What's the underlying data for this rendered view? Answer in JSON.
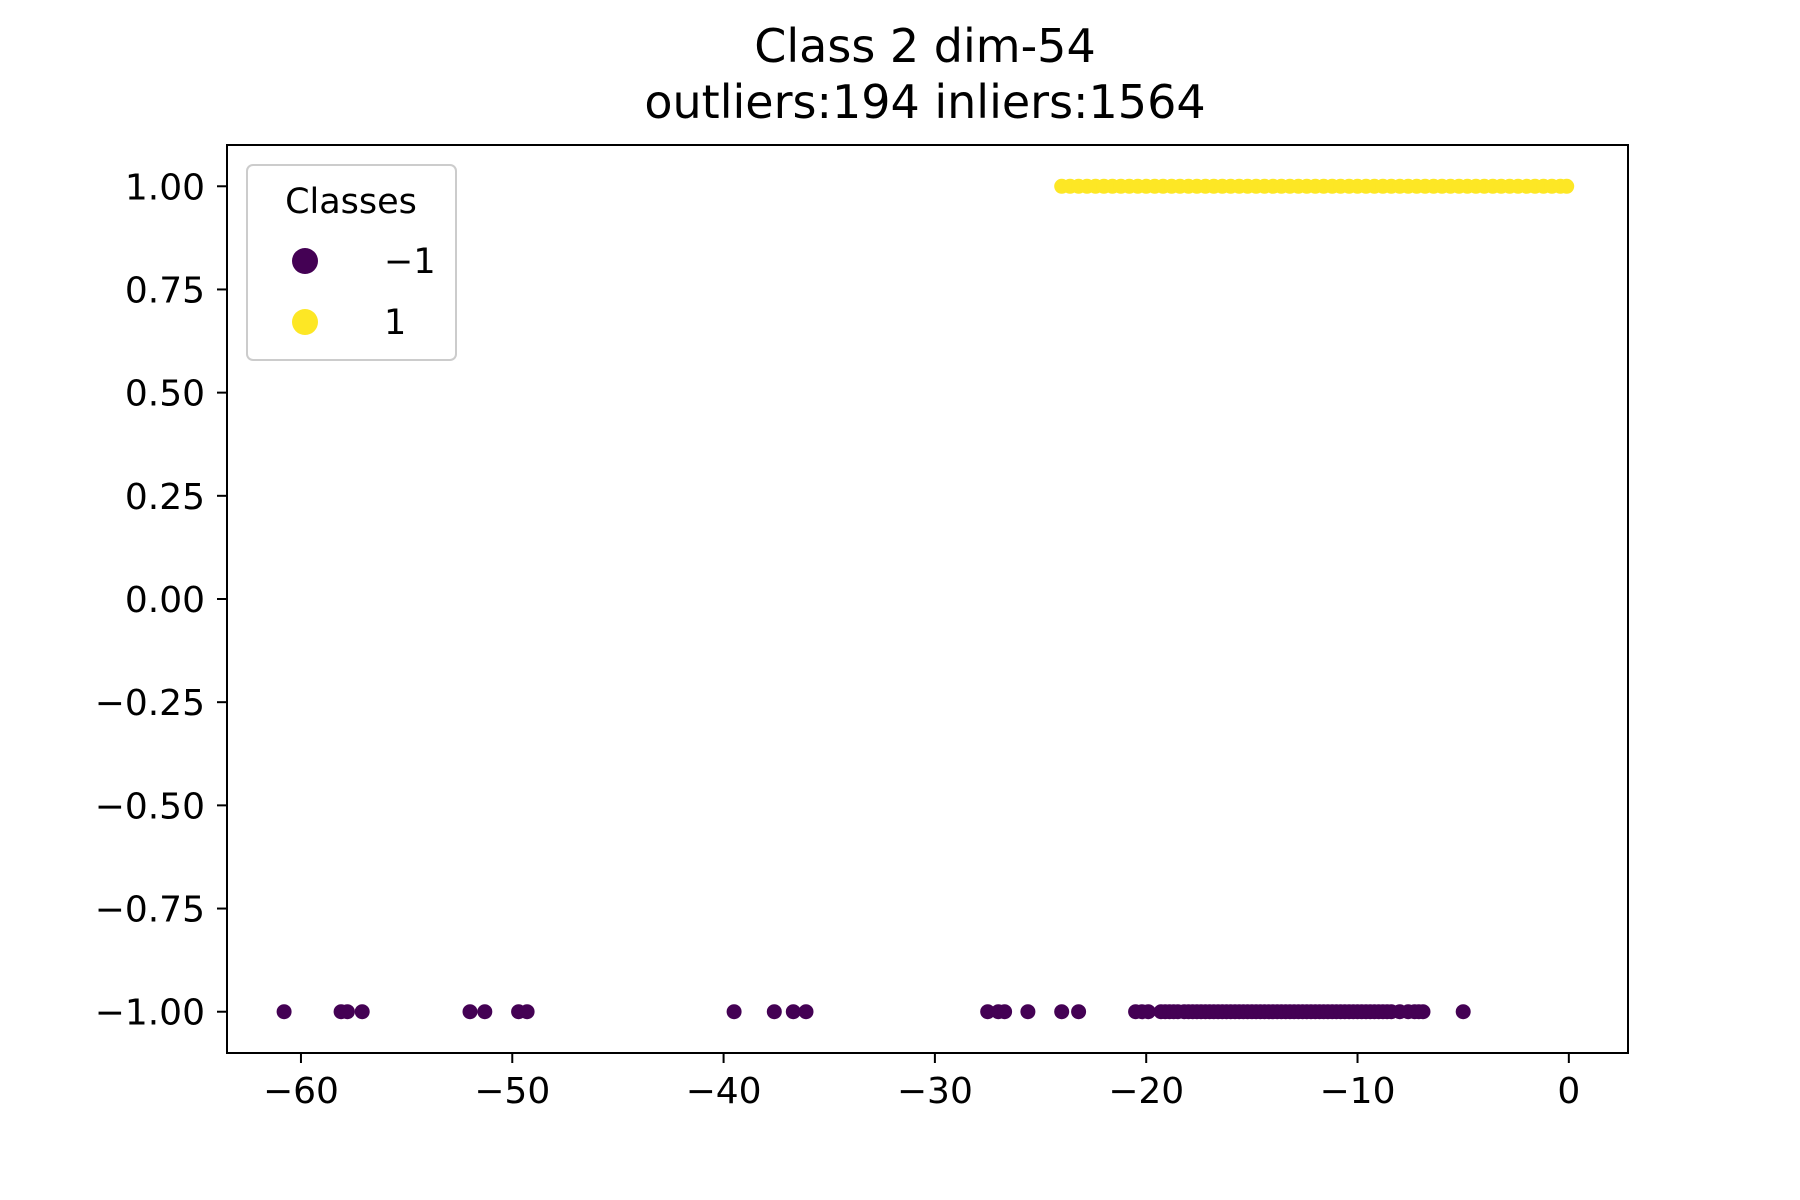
{
  "chart_data": {
    "type": "scatter",
    "title": "Class 2 dim-54",
    "subtitle": "outliers:194  inliers:1564",
    "xlabel": "",
    "ylabel": "",
    "xlim": [
      -63.5,
      2.8
    ],
    "ylim": [
      -1.1,
      1.1
    ],
    "grid": false,
    "x_ticks": [
      -60,
      -50,
      -40,
      -30,
      -20,
      -10,
      0
    ],
    "x_tick_labels": [
      "−60",
      "−50",
      "−40",
      "−30",
      "−20",
      "−10",
      "0"
    ],
    "y_ticks": [
      1.0,
      0.75,
      0.5,
      0.25,
      0.0,
      -0.25,
      -0.5,
      -0.75,
      -1.0
    ],
    "y_tick_labels": [
      "1.00",
      "0.75",
      "0.50",
      "0.25",
      "0.00",
      "−0.25",
      "−0.50",
      "−0.75",
      "−1.00"
    ],
    "legend": {
      "title": "Classes",
      "placement": "top-left",
      "entries": [
        {
          "label": "−1",
          "color": "#440154"
        },
        {
          "label": "1",
          "color": "#fde725"
        }
      ]
    },
    "series": [
      {
        "class": -1,
        "color": "#440154",
        "y": -1,
        "x": [
          -60.8,
          -58.1,
          -57.8,
          -57.1,
          -52.0,
          -51.3,
          -49.7,
          -49.3,
          -39.5,
          -37.6,
          -36.7,
          -36.1,
          -27.5,
          -27.0,
          -26.7,
          -25.6,
          -24.0,
          -23.2,
          -20.5,
          -20.2,
          -19.9,
          -19.3,
          -19.1,
          -18.9,
          -18.7,
          -18.5,
          -18.2,
          -18.0,
          -17.8,
          -17.6,
          -17.4,
          -17.2,
          -17.0,
          -16.8,
          -16.6,
          -16.4,
          -16.2,
          -16.0,
          -15.8,
          -15.6,
          -15.4,
          -15.2,
          -15.0,
          -14.8,
          -14.6,
          -14.4,
          -14.2,
          -14.0,
          -13.8,
          -13.6,
          -13.4,
          -13.2,
          -13.0,
          -12.8,
          -12.6,
          -12.4,
          -12.2,
          -12.0,
          -11.8,
          -11.6,
          -11.4,
          -11.2,
          -11.0,
          -10.8,
          -10.6,
          -10.4,
          -10.2,
          -10.0,
          -9.8,
          -9.6,
          -9.4,
          -9.2,
          -9.0,
          -8.8,
          -8.6,
          -8.4,
          -8.0,
          -7.6,
          -7.3,
          -7.1,
          -6.9,
          -5.0
        ]
      },
      {
        "class": 1,
        "color": "#fde725",
        "y": 1,
        "x": [
          -24.0,
          -23.6,
          -23.2,
          -22.8,
          -22.4,
          -22.0,
          -21.6,
          -21.2,
          -20.8,
          -20.4,
          -20.0,
          -19.6,
          -19.2,
          -18.8,
          -18.4,
          -18.0,
          -17.6,
          -17.2,
          -16.8,
          -16.4,
          -16.0,
          -15.6,
          -15.2,
          -14.8,
          -14.4,
          -14.0,
          -13.6,
          -13.2,
          -12.8,
          -12.4,
          -12.0,
          -11.6,
          -11.2,
          -10.8,
          -10.4,
          -10.0,
          -9.6,
          -9.2,
          -8.8,
          -8.4,
          -8.0,
          -7.6,
          -7.2,
          -6.8,
          -6.4,
          -6.0,
          -5.6,
          -5.2,
          -4.8,
          -4.4,
          -4.0,
          -3.6,
          -3.2,
          -2.8,
          -2.4,
          -2.0,
          -1.6,
          -1.2,
          -0.8,
          -0.4,
          -0.1
        ]
      }
    ]
  }
}
